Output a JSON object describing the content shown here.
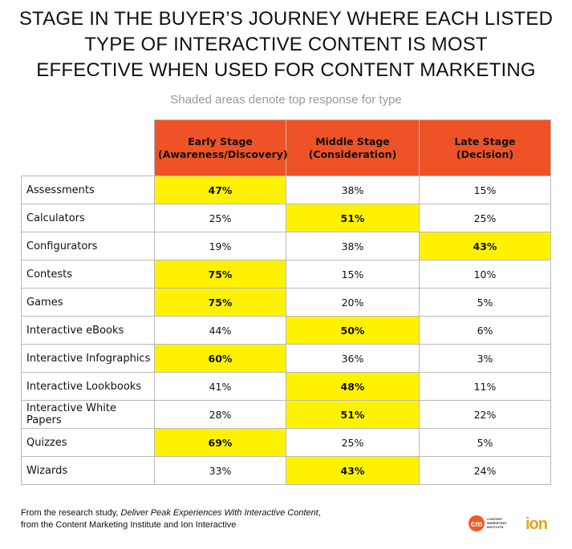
{
  "title_lines": [
    "STAGE IN THE BUYER’S JOURNEY WHERE EACH LISTED",
    "TYPE OF INTERACTIVE CONTENT IS MOST",
    "EFFECTIVE WHEN USED FOR CONTENT MARKETING"
  ],
  "subtitle": "Shaded areas denote top response for type",
  "chart_data": {
    "type": "table",
    "columns": [
      {
        "line1": "Early Stage",
        "line2": "(Awareness/Discovery)"
      },
      {
        "line1": "Middle Stage",
        "line2": "(Consideration)"
      },
      {
        "line1": "Late Stage",
        "line2": "(Decision)"
      }
    ],
    "rows": [
      {
        "type": "Assessments",
        "values": [
          "47%",
          "38%",
          "15%"
        ],
        "top": 0
      },
      {
        "type": "Calculators",
        "values": [
          "25%",
          "51%",
          "25%"
        ],
        "top": 1
      },
      {
        "type": "Configurators",
        "values": [
          "19%",
          "38%",
          "43%"
        ],
        "top": 2
      },
      {
        "type": "Contests",
        "values": [
          "75%",
          "15%",
          "10%"
        ],
        "top": 0
      },
      {
        "type": "Games",
        "values": [
          "75%",
          "20%",
          "5%"
        ],
        "top": 0
      },
      {
        "type": "Interactive eBooks",
        "values": [
          "44%",
          "50%",
          "6%"
        ],
        "top": 1
      },
      {
        "type": "Interactive Infographics",
        "values": [
          "60%",
          "36%",
          "3%"
        ],
        "top": 0
      },
      {
        "type": "Interactive Lookbooks",
        "values": [
          "41%",
          "48%",
          "11%"
        ],
        "top": 1
      },
      {
        "type": "Interactive White Papers",
        "values": [
          "28%",
          "51%",
          "22%"
        ],
        "top": 1
      },
      {
        "type": "Quizzes",
        "values": [
          "69%",
          "25%",
          "5%"
        ],
        "top": 0
      },
      {
        "type": "Wizards",
        "values": [
          "33%",
          "43%",
          "24%"
        ],
        "top": 1
      }
    ],
    "highlight_color": "#fff200",
    "header_color": "#ee5226"
  },
  "footer": {
    "line1_prefix": "From the research study, ",
    "line1_study": "Deliver Peak Experiences With Interactive Content",
    "line1_suffix": ",",
    "line2": "from the Content Marketing Institute and Ion Interactive"
  },
  "logos": {
    "cmi_mark": "cm",
    "cmi_text": [
      "CONTENT",
      "MARKETING",
      "INSTITUTE"
    ],
    "ion_text": "ion",
    "cmi_icon": "cmi-logo-icon",
    "ion_icon": "ion-logo-icon"
  }
}
